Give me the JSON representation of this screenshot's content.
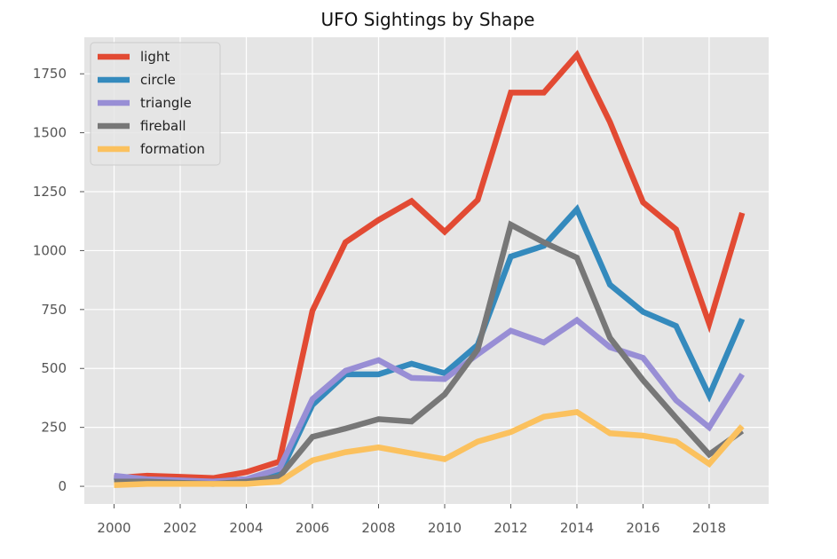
{
  "chart_data": {
    "type": "line",
    "title": "UFO Sightings by Shape",
    "xlabel": "",
    "ylabel": "",
    "x": [
      2000,
      2001,
      2002,
      2003,
      2004,
      2005,
      2006,
      2007,
      2008,
      2009,
      2010,
      2011,
      2012,
      2013,
      2014,
      2015,
      2016,
      2017,
      2018,
      2019
    ],
    "xlim": [
      1999.1,
      2019.8
    ],
    "ylim": [
      -75,
      1905
    ],
    "xticks": [
      "2000",
      "2002",
      "2004",
      "2006",
      "2008",
      "2010",
      "2012",
      "2014",
      "2016",
      "2018"
    ],
    "xtick_values": [
      2000,
      2002,
      2004,
      2006,
      2008,
      2010,
      2012,
      2014,
      2016,
      2018
    ],
    "yticks": [
      "0",
      "250",
      "500",
      "750",
      "1000",
      "1250",
      "1500",
      "1750"
    ],
    "ytick_values": [
      0,
      250,
      500,
      750,
      1000,
      1250,
      1500,
      1750
    ],
    "grid": true,
    "legend_position": "top-left",
    "background_color": "#e5e5e5",
    "grid_color": "#ffffff",
    "series": [
      {
        "name": "light",
        "color": "#e24a33",
        "values": [
          35,
          45,
          40,
          35,
          60,
          105,
          745,
          1035,
          1130,
          1210,
          1080,
          1215,
          1670,
          1670,
          1830,
          1545,
          1205,
          1090,
          690,
          1160
        ]
      },
      {
        "name": "circle",
        "color": "#348abd",
        "values": [
          40,
          25,
          20,
          20,
          30,
          50,
          345,
          475,
          475,
          520,
          480,
          600,
          975,
          1020,
          1175,
          855,
          740,
          680,
          385,
          710
        ]
      },
      {
        "name": "triangle",
        "color": "#988ed5",
        "values": [
          45,
          30,
          25,
          20,
          30,
          75,
          370,
          490,
          535,
          460,
          455,
          560,
          660,
          610,
          705,
          590,
          545,
          365,
          250,
          475
        ]
      },
      {
        "name": "fireball",
        "color": "#777777",
        "values": [
          20,
          20,
          15,
          10,
          20,
          40,
          210,
          245,
          285,
          275,
          390,
          580,
          1110,
          1035,
          970,
          630,
          450,
          290,
          135,
          235
        ]
      },
      {
        "name": "formation",
        "color": "#fbc15e",
        "values": [
          5,
          10,
          10,
          10,
          10,
          20,
          110,
          145,
          165,
          140,
          115,
          190,
          230,
          295,
          315,
          225,
          215,
          190,
          95,
          255
        ]
      }
    ]
  }
}
